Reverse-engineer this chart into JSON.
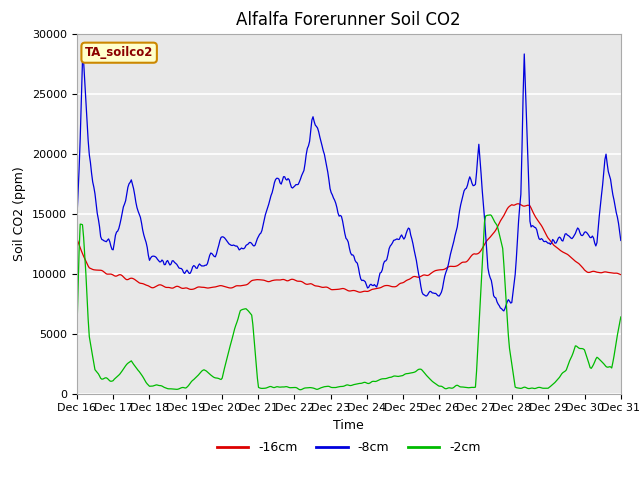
{
  "title": "Alfalfa Forerunner Soil CO2",
  "ylabel": "Soil CO2 (ppm)",
  "xlabel": "Time",
  "annotation": "TA_soilco2",
  "ylim": [
    0,
    30000
  ],
  "yticks": [
    0,
    5000,
    10000,
    15000,
    20000,
    25000,
    30000
  ],
  "xtick_labels": [
    "Dec 16",
    "Dec 17",
    "Dec 18",
    "Dec 19",
    "Dec 20",
    "Dec 21",
    "Dec 22",
    "Dec 23",
    "Dec 24",
    "Dec 25",
    "Dec 26",
    "Dec 27",
    "Dec 28",
    "Dec 29",
    "Dec 30",
    "Dec 31"
  ],
  "legend_labels": [
    "-16cm",
    "-8cm",
    "-2cm"
  ],
  "line_colors": [
    "#dd0000",
    "#0000dd",
    "#00bb00"
  ],
  "bg_color": "#e8e8e8",
  "title_fontsize": 12,
  "axis_fontsize": 9,
  "tick_fontsize": 8,
  "red_kx": [
    0,
    8,
    16,
    24,
    48,
    72,
    96,
    120,
    144,
    168,
    192,
    216,
    240,
    252,
    264,
    276,
    288,
    300,
    312,
    336,
    360
  ],
  "red_ky": [
    12800,
    10500,
    10200,
    10000,
    9000,
    8700,
    8900,
    9400,
    9500,
    8700,
    8500,
    9300,
    10300,
    10800,
    11500,
    13500,
    16000,
    15500,
    13000,
    10300,
    10000
  ],
  "blue_kx": [
    0,
    2,
    4,
    8,
    16,
    24,
    36,
    48,
    60,
    72,
    84,
    96,
    108,
    120,
    132,
    140,
    144,
    150,
    156,
    160,
    164,
    168,
    180,
    192,
    200,
    208,
    212,
    216,
    220,
    228,
    232,
    236,
    240,
    252,
    256,
    260,
    264,
    266,
    268,
    272,
    276,
    280,
    288,
    290,
    292,
    294,
    296,
    300,
    312,
    324,
    336,
    344,
    348,
    350,
    360
  ],
  "blue_ky": [
    14000,
    20000,
    29000,
    20000,
    13000,
    12500,
    17800,
    11500,
    11000,
    10000,
    10500,
    12800,
    12000,
    12800,
    17800,
    18000,
    17200,
    18500,
    23000,
    22000,
    20000,
    16800,
    12500,
    8800,
    9500,
    12500,
    12800,
    13000,
    14000,
    8800,
    8200,
    8500,
    8000,
    14000,
    17000,
    18000,
    17500,
    21000,
    17500,
    10500,
    8000,
    7000,
    7500,
    10000,
    14000,
    17000,
    29000,
    14000,
    12500,
    13000,
    13500,
    12500,
    17000,
    20000,
    12800
  ],
  "green_kx": [
    0,
    2,
    4,
    6,
    8,
    12,
    16,
    24,
    36,
    48,
    60,
    72,
    84,
    96,
    108,
    112,
    116,
    120,
    144,
    168,
    192,
    216,
    228,
    240,
    252,
    260,
    264,
    270,
    274,
    278,
    282,
    284,
    286,
    290,
    300,
    312,
    324,
    330,
    336,
    340,
    344,
    348,
    354,
    360
  ],
  "green_ky": [
    4800,
    14000,
    14000,
    10000,
    5000,
    2000,
    1200,
    1000,
    2800,
    600,
    500,
    500,
    2000,
    1200,
    7000,
    7000,
    6500,
    500,
    500,
    500,
    900,
    1500,
    2000,
    500,
    600,
    500,
    500,
    14800,
    15000,
    14000,
    12000,
    8000,
    4000,
    500,
    500,
    500,
    2000,
    4000,
    3500,
    2000,
    3000,
    2500,
    2000,
    6500
  ]
}
